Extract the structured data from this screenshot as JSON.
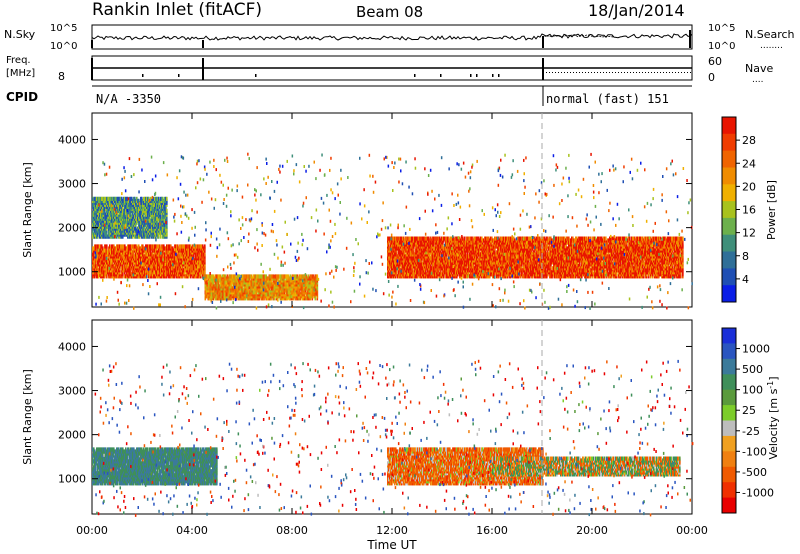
{
  "header": {
    "station": "Rankin Inlet (fitACF)",
    "beam": "Beam 08",
    "date": "18/Jan/2014"
  },
  "nsky_panel": {
    "left_label": "N.Sky",
    "left_ticks": [
      "10^5",
      "10^0"
    ],
    "right_ticks": [
      "10^5",
      "10^0"
    ],
    "right_label": "N.Search",
    "right_label_dots": "........"
  },
  "freq_panel": {
    "left_label_1": "Freq.",
    "left_label_2": "[MHz]",
    "left_tick": "8",
    "right_ticks": [
      "60",
      "0"
    ],
    "right_label": "Nave",
    "right_label_dots": "...."
  },
  "cpid_panel": {
    "label": "CPID",
    "mode_1": "N/A -3350",
    "mode_2": "normal (fast) 151"
  },
  "chart_data": [
    {
      "type": "heatmap",
      "name": "power",
      "ylabel": "Slant Range [km]",
      "y_ticks": [
        1000,
        2000,
        3000,
        4000
      ],
      "ylim": [
        200,
        4600
      ],
      "xlim": [
        0,
        24
      ],
      "x_ticks_hours": [
        0,
        4,
        8,
        12,
        16,
        20,
        24
      ],
      "colorbar": {
        "label": "Power [dB]",
        "range": [
          0,
          32
        ],
        "ticks": [
          "4",
          "8",
          "12",
          "16",
          "20",
          "24",
          "28"
        ],
        "colors": [
          "#0a1ee6",
          "#1f4fb4",
          "#2f6f98",
          "#3f8f7a",
          "#6cb04c",
          "#a8c21e",
          "#f0b000",
          "#f08c00",
          "#f06400",
          "#f03c00",
          "#e81400"
        ]
      },
      "description_bands": [
        {
          "t0": 0.0,
          "t1": 4.5,
          "r0": 900,
          "r1": 1600,
          "level": 27
        },
        {
          "t0": 4.5,
          "t1": 9.0,
          "r0": 400,
          "r1": 900,
          "level": 22
        },
        {
          "t0": 11.8,
          "t1": 23.6,
          "r0": 900,
          "r1": 1800,
          "level": 28
        },
        {
          "t0": 0.0,
          "t1": 3.0,
          "r0": 1800,
          "r1": 2700,
          "level": 10
        }
      ]
    },
    {
      "type": "heatmap",
      "name": "velocity",
      "ylabel": "Slant Range [km]",
      "y_ticks": [
        1000,
        2000,
        3000,
        4000
      ],
      "ylim": [
        200,
        4600
      ],
      "xlim": [
        0,
        24
      ],
      "x_ticks_hours": [
        0,
        4,
        8,
        12,
        16,
        20,
        24
      ],
      "colorbar": {
        "label": "Velocity [m s^-1]",
        "ticks": [
          "1000",
          "500",
          "100",
          "25",
          "-25",
          "-100",
          "-500",
          "-1000"
        ],
        "colors": [
          "#1a2fd8",
          "#2a55c0",
          "#3b7a9a",
          "#3f8f5a",
          "#5a9a3c",
          "#7ccc2a",
          "#bdbdbd",
          "#f0a020",
          "#f08010",
          "#f05a00",
          "#f03000",
          "#e80000"
        ]
      },
      "description_bands": [
        {
          "t0": 0.0,
          "t1": 5.0,
          "r0": 900,
          "r1": 1700,
          "level": 300
        },
        {
          "t0": 11.8,
          "t1": 18.0,
          "r0": 900,
          "r1": 1700,
          "level": -150
        },
        {
          "t0": 16.0,
          "t1": 23.5,
          "r0": 1100,
          "r1": 1500,
          "level": 0
        }
      ]
    }
  ],
  "x_axis": {
    "tick_labels": [
      "00:00",
      "04:00",
      "08:00",
      "12:00",
      "16:00",
      "20:00",
      "00:00"
    ],
    "label": "Time UT"
  }
}
